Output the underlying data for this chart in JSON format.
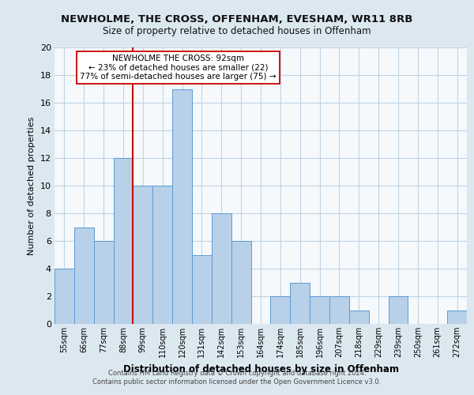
{
  "title": "NEWHOLME, THE CROSS, OFFENHAM, EVESHAM, WR11 8RB",
  "subtitle": "Size of property relative to detached houses in Offenham",
  "xlabel": "Distribution of detached houses by size in Offenham",
  "ylabel": "Number of detached properties",
  "bar_labels": [
    "55sqm",
    "66sqm",
    "77sqm",
    "88sqm",
    "99sqm",
    "110sqm",
    "120sqm",
    "131sqm",
    "142sqm",
    "153sqm",
    "164sqm",
    "174sqm",
    "185sqm",
    "196sqm",
    "207sqm",
    "218sqm",
    "229sqm",
    "239sqm",
    "250sqm",
    "261sqm",
    "272sqm"
  ],
  "bar_values": [
    4,
    7,
    6,
    12,
    10,
    10,
    17,
    5,
    8,
    6,
    0,
    2,
    3,
    2,
    2,
    1,
    0,
    2,
    0,
    0,
    1
  ],
  "bar_color": "#b8d0e8",
  "bar_edge_color": "#5b9bd5",
  "vline_x": 3.5,
  "vline_color": "#cc0000",
  "annotation_text_line1": "NEWHOLME THE CROSS: 92sqm",
  "annotation_text_line2": "← 23% of detached houses are smaller (22)",
  "annotation_text_line3": "77% of semi-detached houses are larger (75) →",
  "annotation_box_color": "#ffffff",
  "annotation_box_edge_color": "#cc0000",
  "ylim": [
    0,
    20
  ],
  "yticks": [
    0,
    2,
    4,
    6,
    8,
    10,
    12,
    14,
    16,
    18,
    20
  ],
  "footer_line1": "Contains HM Land Registry data © Crown copyright and database right 2024.",
  "footer_line2": "Contains public sector information licensed under the Open Government Licence v3.0.",
  "bg_color": "#dce8f0",
  "plot_bg_color": "#f5f9fc",
  "grid_color": "#c0d4e4"
}
